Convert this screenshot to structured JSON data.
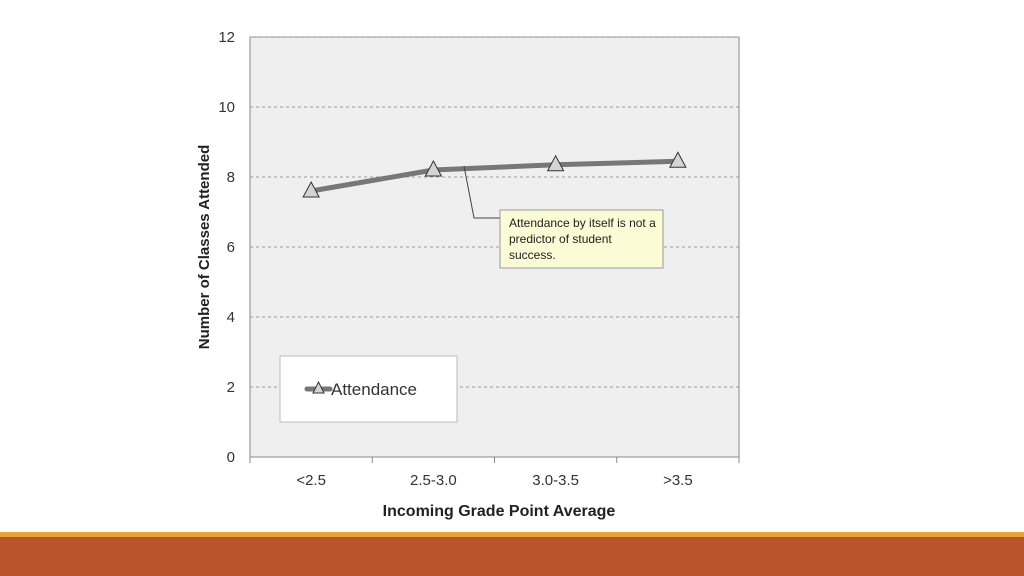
{
  "chart_data": {
    "type": "line",
    "categories": [
      "<2.5",
      "2.5-3.0",
      "3.0-3.5",
      ">3.5"
    ],
    "series": [
      {
        "name": "Attendance",
        "values": [
          7.6,
          8.2,
          8.35,
          8.45
        ]
      }
    ],
    "xlabel": "Incoming Grade Point Average",
    "ylabel": "Number of Classes Attended",
    "ylim": [
      0,
      12
    ],
    "yticks": [
      "0",
      "2",
      "4",
      "6",
      "8",
      "10",
      "12"
    ],
    "grid": "horizontal dashed",
    "legend": "bottom-left",
    "annotation": "Attendance by itself is not a predictor of student success.",
    "colors": {
      "plot_background": "#efefef",
      "series_line": "#777777",
      "marker_fill": "#d4d4d4",
      "callout_background": "#fbfbd6",
      "footer_accent": "#e8a23a",
      "footer_bar": "#b9552a"
    }
  }
}
